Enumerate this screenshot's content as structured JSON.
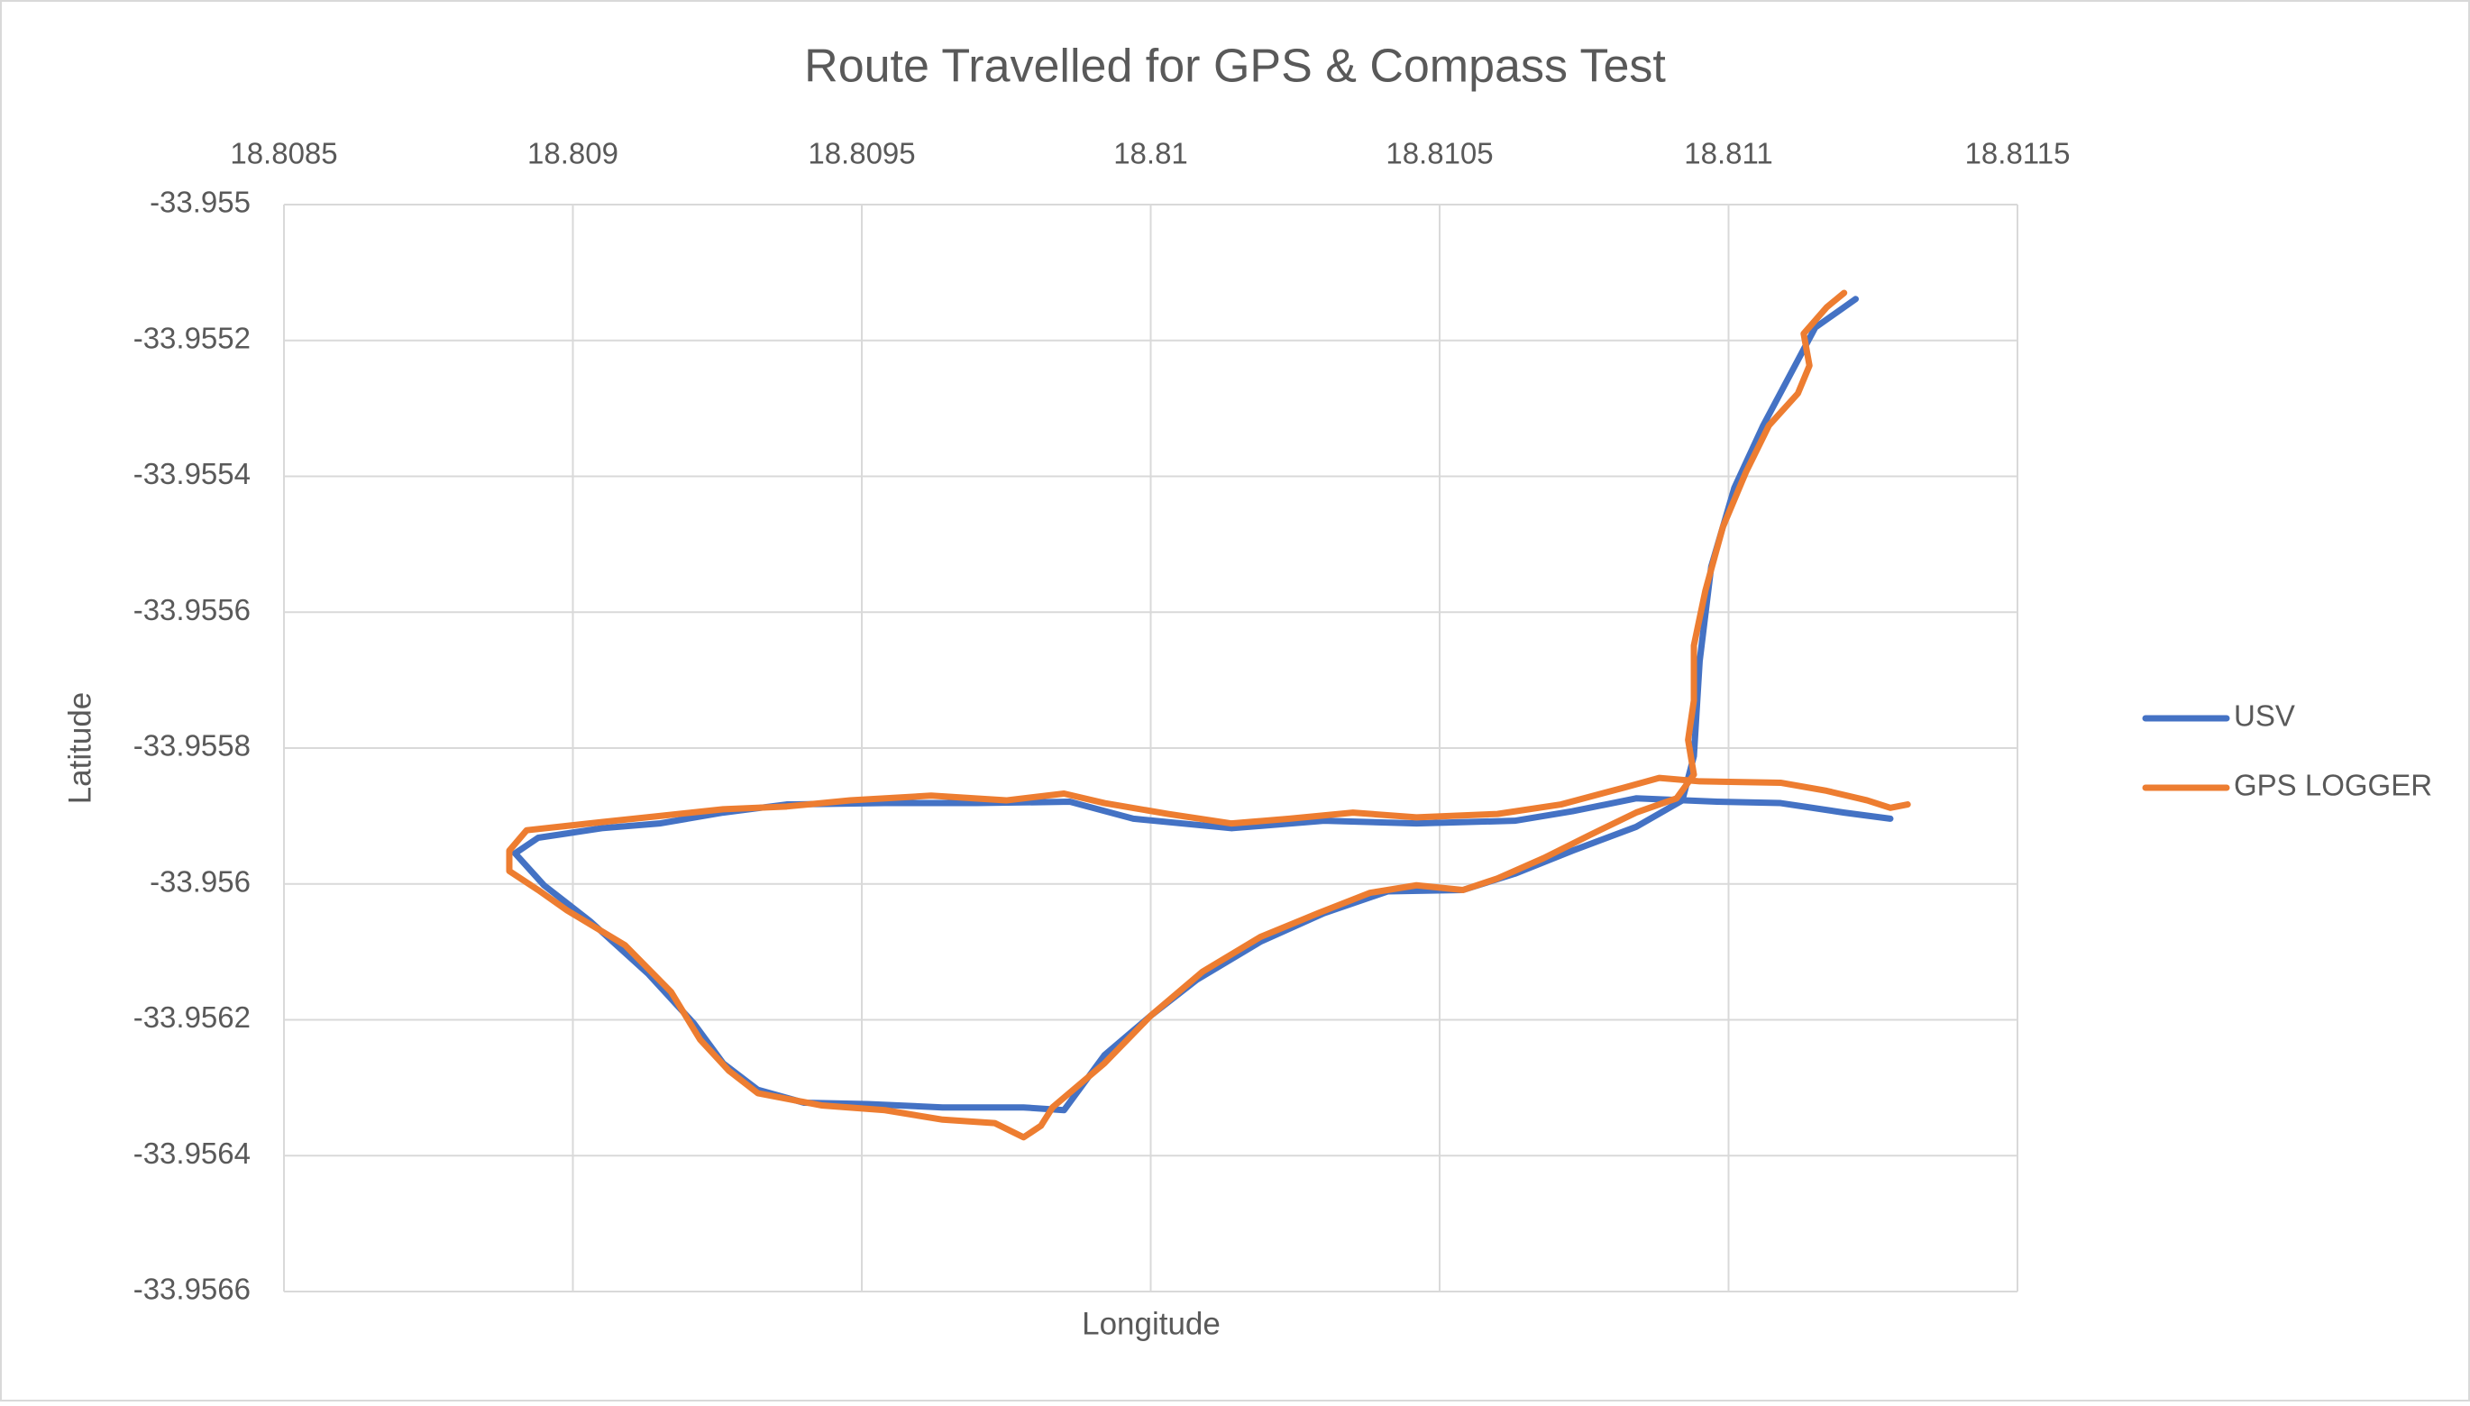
{
  "chart_data": {
    "type": "line",
    "title": "Route Travelled for GPS & Compass Test",
    "x_label": "Longitude",
    "y_label": "Latitude",
    "xlim": [
      18.8085,
      18.8115
    ],
    "xticks": [
      18.8085,
      18.809,
      18.8095,
      18.81,
      18.8105,
      18.811,
      18.8115
    ],
    "ylim": [
      -33.9566,
      -33.955
    ],
    "yticks": [
      -33.955,
      -33.9552,
      -33.9554,
      -33.9556,
      -33.9558,
      -33.956,
      -33.9562,
      -33.9564,
      -33.9566
    ],
    "grid": true,
    "legend": "right",
    "series": [
      {
        "name": "USV",
        "color": "#4472c4",
        "x": [
          18.81122,
          18.81115,
          18.81106,
          18.81101,
          18.81097,
          18.81095,
          18.81094,
          18.81092,
          18.81084,
          18.81073,
          18.81063,
          18.81054,
          18.81041,
          18.8103,
          18.81019,
          18.81008,
          18.81,
          18.80992,
          18.80985,
          18.80978,
          18.80964,
          18.80951,
          18.8094,
          18.80932,
          18.80926,
          18.80921,
          18.80913,
          18.80903,
          18.80895,
          18.8089,
          18.80894,
          18.80905,
          18.80915,
          18.80926,
          18.80937,
          18.80954,
          18.8097,
          18.80986,
          18.80997,
          18.81014,
          18.8103,
          18.81046,
          18.81063,
          18.81073,
          18.81084,
          18.81098,
          18.81109,
          18.8112,
          18.81128
        ],
        "values": [
          -33.955139,
          -33.955181,
          -33.955325,
          -33.955417,
          -33.955533,
          -33.955672,
          -33.955812,
          -33.955877,
          -33.955916,
          -33.955951,
          -33.955985,
          -33.956009,
          -33.956011,
          -33.956043,
          -33.956085,
          -33.956141,
          -33.956194,
          -33.956252,
          -33.956333,
          -33.956329,
          -33.956329,
          -33.956324,
          -33.956322,
          -33.956303,
          -33.956264,
          -33.956206,
          -33.956132,
          -33.956055,
          -33.956002,
          -33.955955,
          -33.955932,
          -33.955918,
          -33.955911,
          -33.955895,
          -33.955883,
          -33.955881,
          -33.955881,
          -33.955879,
          -33.955904,
          -33.955918,
          -33.955907,
          -33.955911,
          -33.955907,
          -33.955893,
          -33.955874,
          -33.955879,
          -33.955881,
          -33.955895,
          -33.955904
        ]
      },
      {
        "name": "GPS LOGGER",
        "color": "#ed7d31",
        "x": [
          18.8112,
          18.81117,
          18.81113,
          18.81114,
          18.81112,
          18.81107,
          18.81103,
          18.81099,
          18.81096,
          18.81094,
          18.81094,
          18.81093,
          18.81094,
          18.81091,
          18.81084,
          18.81076,
          18.81068,
          18.8106,
          18.81054,
          18.81046,
          18.81038,
          18.81029,
          18.81019,
          18.81009,
          18.81,
          18.80992,
          18.80983,
          18.80981,
          18.80978,
          18.80973,
          18.80964,
          18.80954,
          18.80943,
          18.80932,
          18.80927,
          18.80922,
          18.80917,
          18.80909,
          18.80899,
          18.80894,
          18.80889,
          18.80889,
          18.80892,
          18.80905,
          18.80915,
          18.80926,
          18.80937,
          18.80948,
          18.80962,
          18.80975,
          18.80985,
          18.80992,
          18.81003,
          18.81014,
          18.81024,
          18.81035,
          18.81046,
          18.8106,
          18.81071,
          18.81082,
          18.81088,
          18.81095,
          18.81109,
          18.81117,
          18.81124,
          18.81128,
          18.81131
        ],
        "values": [
          -33.95513,
          -33.955151,
          -33.95519,
          -33.955237,
          -33.955278,
          -33.955325,
          -33.955394,
          -33.955475,
          -33.955568,
          -33.955649,
          -33.95573,
          -33.955788,
          -33.955839,
          -33.955874,
          -33.955895,
          -33.955928,
          -33.955962,
          -33.955992,
          -33.956009,
          -33.956002,
          -33.956013,
          -33.956043,
          -33.956078,
          -33.956129,
          -33.956194,
          -33.956264,
          -33.956329,
          -33.956356,
          -33.956373,
          -33.956352,
          -33.956347,
          -33.956333,
          -33.956326,
          -33.956308,
          -33.956275,
          -33.956229,
          -33.956159,
          -33.95609,
          -33.956039,
          -33.956009,
          -33.955981,
          -33.955951,
          -33.955921,
          -33.955909,
          -33.9559,
          -33.95589,
          -33.955886,
          -33.955877,
          -33.95587,
          -33.955877,
          -33.955867,
          -33.955881,
          -33.955897,
          -33.955911,
          -33.955904,
          -33.955895,
          -33.955902,
          -33.955897,
          -33.955883,
          -33.955858,
          -33.955844,
          -33.955849,
          -33.955851,
          -33.955863,
          -33.955877,
          -33.955888,
          -33.955883
        ]
      }
    ]
  }
}
